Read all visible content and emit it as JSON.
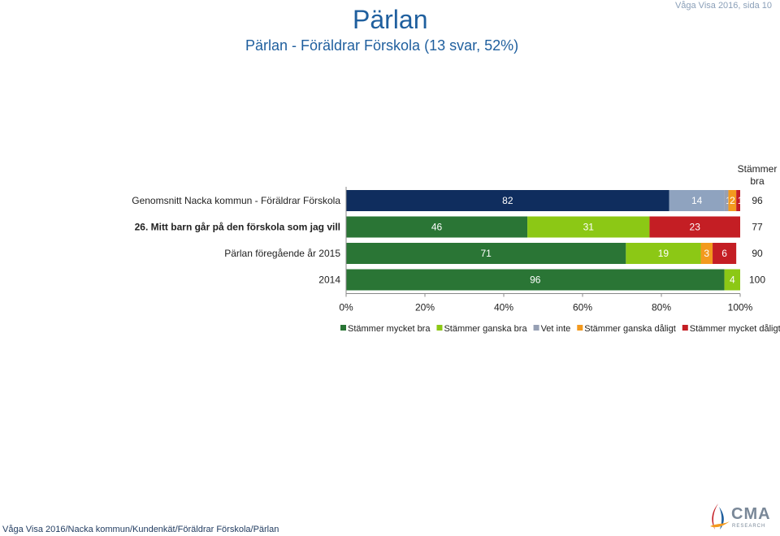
{
  "header": {
    "title": "Pärlan",
    "subtitle": "Pärlan - Föräldrar Förskola (13 svar, 52%)",
    "page_ref": "Våga Visa 2016, sida 10"
  },
  "footer": {
    "path": "Våga Visa 2016/Nacka kommun/Kundenkät/Föräldrar Förskola/Pärlan",
    "logo_text": "CMA",
    "logo_sub": "RESEARCH"
  },
  "colors": {
    "Stämmer mycket bra": "#2a7535",
    "Stämmer ganska bra": "#8cc815",
    "Vet inte": "#97a0b4",
    "Stämmer ganska dåligt": "#f39a1e",
    "Stämmer mycket dåligt": "#c41e24",
    "nacka_bar": "#0f2d5e",
    "nacka_bar_2": "#8fa3bf"
  },
  "chart_data": {
    "type": "bar",
    "orientation": "horizontal",
    "stacked": true,
    "right_header": "Stämmer bra",
    "xlim": [
      0,
      100
    ],
    "xticks": [
      "0%",
      "20%",
      "40%",
      "60%",
      "80%",
      "100%"
    ],
    "legend": [
      "Stämmer mycket bra",
      "Stämmer ganska bra",
      "Vet inte",
      "Stämmer ganska dåligt",
      "Stämmer mycket dåligt"
    ],
    "legend_position": "bottom",
    "rows": [
      {
        "label": "Genomsnitt Nacka kommun - Föräldrar Förskola",
        "bold": false,
        "total": "96",
        "segments": [
          {
            "value": 82,
            "label": "82",
            "color": "#0f2d5e",
            "text": "#ffffff"
          },
          {
            "value": 14,
            "label": "14",
            "color": "#8fa3bf",
            "text": "#ffffff"
          },
          {
            "value": 1,
            "label": "1",
            "color": "#97a0b4",
            "text": "#ffffff"
          },
          {
            "value": 2,
            "label": "2",
            "color": "#f39a1e",
            "text": "#ffffff"
          },
          {
            "value": 1,
            "label": "1",
            "color": "#c41e24",
            "text": "#ffffff"
          }
        ]
      },
      {
        "label": "26. Mitt barn går på den förskola som jag vill",
        "bold": true,
        "total": "77",
        "segments": [
          {
            "value": 46,
            "label": "46",
            "color": "#2a7535",
            "text": "#ffffff"
          },
          {
            "value": 31,
            "label": "31",
            "color": "#8cc815",
            "text": "#ffffff"
          },
          {
            "value": 0,
            "label": "0",
            "color": "#97a0b4",
            "text": "#ffffff"
          },
          {
            "value": 23,
            "label": "23",
            "color": "#c41e24",
            "text": "#ffffff"
          }
        ]
      },
      {
        "label": "Pärlan föregående år 2015",
        "bold": false,
        "total": "90",
        "segments": [
          {
            "value": 71,
            "label": "71",
            "color": "#2a7535",
            "text": "#ffffff"
          },
          {
            "value": 19,
            "label": "19",
            "color": "#8cc815",
            "text": "#ffffff"
          },
          {
            "value": 0,
            "label": "0",
            "color": "#97a0b4",
            "text": "#ffffff"
          },
          {
            "value": 3,
            "label": "3",
            "color": "#f39a1e",
            "text": "#ffffff"
          },
          {
            "value": 6,
            "label": "6",
            "color": "#c41e24",
            "text": "#ffffff"
          }
        ]
      },
      {
        "label": "2014",
        "bold": false,
        "total": "100",
        "segments": [
          {
            "value": 96,
            "label": "96",
            "color": "#2a7535",
            "text": "#ffffff"
          },
          {
            "value": 4,
            "label": "4",
            "color": "#8cc815",
            "text": "#ffffff"
          },
          {
            "value": 0,
            "label": "0",
            "color": "#97a0b4",
            "text": "#ffffff"
          }
        ]
      }
    ]
  }
}
